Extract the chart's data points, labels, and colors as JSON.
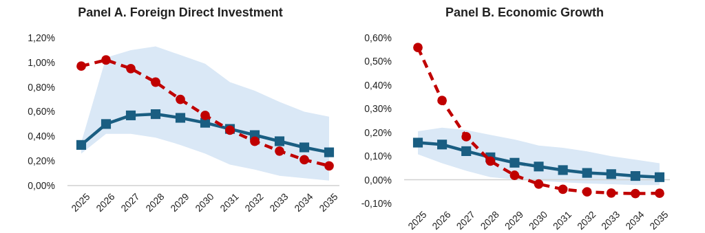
{
  "chart_data": [
    {
      "type": "line",
      "title": "Panel A. Foreign Direct Investment",
      "categories": [
        "2025",
        "2026",
        "2027",
        "2028",
        "2029",
        "2030",
        "2031",
        "2032",
        "2033",
        "2034",
        "2035"
      ],
      "ylim": [
        0,
        1.2
      ],
      "yticks": [
        {
          "value": 0,
          "label": "0,00%"
        },
        {
          "value": 0.2,
          "label": "0,20%"
        },
        {
          "value": 0.4,
          "label": "0,40%"
        },
        {
          "value": 0.6,
          "label": "0,60%"
        },
        {
          "value": 0.8,
          "label": "0,80%"
        },
        {
          "value": 1,
          "label": "1,00%"
        },
        {
          "value": 1.2,
          "label": "1,20%"
        }
      ],
      "series": [
        {
          "color": "#1a5e82",
          "marker": "square",
          "line_style": "solid",
          "values": [
            0.33,
            0.5,
            0.57,
            0.58,
            0.55,
            0.51,
            0.46,
            0.41,
            0.36,
            0.31,
            0.27
          ],
          "lower": [
            0.26,
            0.42,
            0.42,
            0.39,
            0.33,
            0.26,
            0.17,
            0.13,
            0.08,
            0.06,
            0.04
          ],
          "upper": [
            0.35,
            1.04,
            1.1,
            1.13,
            1.06,
            0.99,
            0.84,
            0.77,
            0.68,
            0.6,
            0.56
          ]
        },
        {
          "color": "#c00000",
          "marker": "circle",
          "line_style": "dashed",
          "values": [
            0.97,
            1.02,
            0.95,
            0.84,
            0.7,
            0.57,
            0.45,
            0.36,
            0.28,
            0.21,
            0.16
          ]
        }
      ]
    },
    {
      "type": "line",
      "title": "Panel B. Economic Growth",
      "categories": [
        "2025",
        "2026",
        "2027",
        "2028",
        "2029",
        "2030",
        "2031",
        "2032",
        "2033",
        "2034",
        "2035"
      ],
      "ylim": [
        -0.1,
        0.6
      ],
      "yticks": [
        {
          "value": -0.1,
          "label": "-0,10%"
        },
        {
          "value": 0,
          "label": "0,00%"
        },
        {
          "value": 0.1,
          "label": "0,10%"
        },
        {
          "value": 0.2,
          "label": "0,20%"
        },
        {
          "value": 0.3,
          "label": "0,30%"
        },
        {
          "value": 0.4,
          "label": "0,40%"
        },
        {
          "value": 0.5,
          "label": "0,50%"
        },
        {
          "value": 0.6,
          "label": "0,60%"
        }
      ],
      "ref_lines": [
        {
          "axis": "y",
          "value": 0,
          "color": "#d0d0d0"
        }
      ],
      "series": [
        {
          "color": "#1a5e82",
          "marker": "square",
          "line_style": "solid",
          "values": [
            0.157,
            0.149,
            0.121,
            0.095,
            0.072,
            0.056,
            0.041,
            0.029,
            0.024,
            0.016,
            0.011
          ],
          "lower": [
            0.108,
            0.07,
            0.038,
            0.011,
            0.002,
            -0.005,
            -0.011,
            -0.016,
            -0.019,
            -0.022,
            -0.022
          ],
          "upper": [
            0.205,
            0.22,
            0.21,
            0.19,
            0.17,
            0.145,
            0.135,
            0.12,
            0.1,
            0.085,
            0.07
          ]
        },
        {
          "color": "#c00000",
          "marker": "circle",
          "line_style": "dashed",
          "values": [
            0.559,
            0.335,
            0.182,
            0.079,
            0.019,
            -0.018,
            -0.04,
            -0.051,
            -0.056,
            -0.058,
            -0.057
          ]
        }
      ]
    }
  ]
}
